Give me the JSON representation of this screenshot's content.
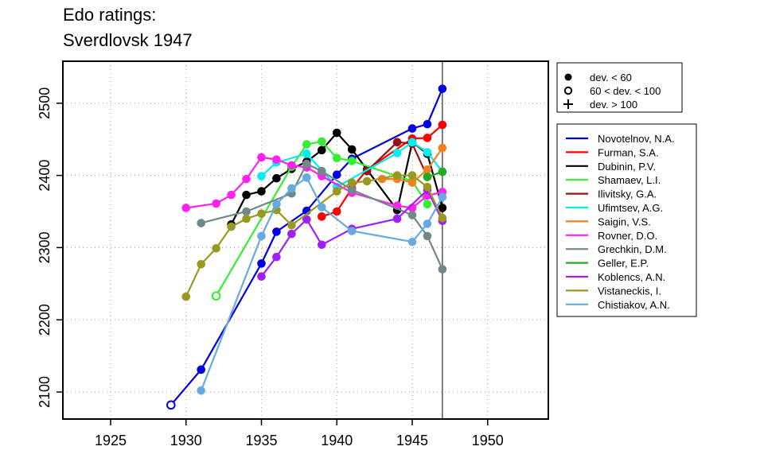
{
  "chart_data": {
    "type": "line",
    "title": "Edo ratings:",
    "subtitle": "Sverdlovsk 1947",
    "xlabel": "",
    "ylabel": "",
    "xlim": [
      1922,
      1955
    ],
    "ylim": [
      2070,
      2555
    ],
    "xticks": [
      "1925",
      "1930",
      "1935",
      "1940",
      "1945",
      "1950"
    ],
    "yticks": [
      "2100",
      "2200",
      "2300",
      "2400",
      "2500"
    ],
    "grid": true,
    "vline": 1947,
    "legend_position": "right",
    "marker_legend": [
      {
        "symbol": "filled-circle",
        "label": "dev. < 60"
      },
      {
        "symbol": "open-circle",
        "label": "60 < dev. < 100"
      },
      {
        "symbol": "plus",
        "label": "dev. > 100"
      }
    ],
    "series": [
      {
        "name": "Novotelnov, N.A.",
        "color": "#0000e0",
        "points": [
          [
            1929,
            2082,
            "o"
          ],
          [
            1931,
            2131,
            "f"
          ],
          [
            1935,
            2278,
            "f"
          ],
          [
            1936,
            2322,
            "f"
          ],
          [
            1938,
            2351,
            "f"
          ],
          [
            1940,
            2401,
            "f"
          ],
          [
            1941,
            2423,
            "f"
          ],
          [
            1945,
            2465,
            "f"
          ],
          [
            1946,
            2471,
            "f"
          ],
          [
            1947,
            2520,
            "f"
          ]
        ]
      },
      {
        "name": "Furman, S.A.",
        "color": "#ff0000",
        "points": [
          [
            1939,
            2343,
            "f"
          ],
          [
            1940,
            2350,
            "f"
          ],
          [
            1941,
            2382,
            "f"
          ],
          [
            1942,
            2408,
            "f"
          ],
          [
            1945,
            2451,
            "f"
          ],
          [
            1946,
            2452,
            "f"
          ],
          [
            1947,
            2470,
            "f"
          ]
        ]
      },
      {
        "name": "Dubinin, P.V.",
        "color": "#000000",
        "points": [
          [
            1933,
            2332,
            "f"
          ],
          [
            1934,
            2373,
            "f"
          ],
          [
            1935,
            2378,
            "f"
          ],
          [
            1936,
            2396,
            "f"
          ],
          [
            1937,
            2409,
            "f"
          ],
          [
            1938,
            2419,
            "f"
          ],
          [
            1939,
            2435,
            "f"
          ],
          [
            1940,
            2459,
            "f"
          ],
          [
            1941,
            2436,
            "f"
          ],
          [
            1942,
            2408,
            "f"
          ],
          [
            1944,
            2352,
            "f"
          ],
          [
            1945,
            2446,
            "f"
          ],
          [
            1946,
            2430,
            "f"
          ],
          [
            1947,
            2355,
            "f"
          ]
        ]
      },
      {
        "name": "Shamaev, L.I.",
        "color": "#33ee33",
        "points": [
          [
            1932,
            2233,
            "o"
          ],
          [
            1937,
            2412,
            "f"
          ],
          [
            1938,
            2443,
            "f"
          ],
          [
            1939,
            2447,
            "f"
          ],
          [
            1940,
            2424,
            "f"
          ],
          [
            1941,
            2420,
            "f"
          ],
          [
            1945,
            2392,
            "f"
          ],
          [
            1946,
            2360,
            "f"
          ]
        ]
      },
      {
        "name": "Ilivitsky, G.A.",
        "color": "#991111",
        "points": [
          [
            1942,
            2406,
            "f"
          ],
          [
            1944,
            2446,
            "f"
          ],
          [
            1945,
            2444,
            "f"
          ],
          [
            1946,
            2398,
            "f"
          ]
        ]
      },
      {
        "name": "Ufimtsev, A.G.",
        "color": "#00eeee",
        "points": [
          [
            1935,
            2399,
            "f"
          ],
          [
            1936,
            2418,
            "f"
          ],
          [
            1938,
            2430,
            "f"
          ],
          [
            1940,
            2384,
            "f"
          ],
          [
            1944,
            2431,
            "f"
          ],
          [
            1945,
            2446,
            "f"
          ],
          [
            1946,
            2432,
            "f"
          ],
          [
            1947,
            2405,
            "f"
          ]
        ]
      },
      {
        "name": "Saigin, V.S.",
        "color": "#f28020",
        "points": [
          [
            1943,
            2395,
            "f"
          ],
          [
            1944,
            2395,
            "f"
          ],
          [
            1945,
            2390,
            "f"
          ],
          [
            1946,
            2408,
            "f"
          ],
          [
            1947,
            2438,
            "f"
          ]
        ]
      },
      {
        "name": "Rovner, D.O.",
        "color": "#ff22ee",
        "points": [
          [
            1930,
            2355,
            "f"
          ],
          [
            1932,
            2361,
            "f"
          ],
          [
            1933,
            2373,
            "f"
          ],
          [
            1934,
            2395,
            "f"
          ],
          [
            1935,
            2425,
            "f"
          ],
          [
            1936,
            2422,
            "f"
          ],
          [
            1937,
            2414,
            "f"
          ],
          [
            1938,
            2411,
            "f"
          ],
          [
            1939,
            2399,
            "f"
          ],
          [
            1941,
            2376,
            "f"
          ],
          [
            1944,
            2358,
            "f"
          ],
          [
            1945,
            2355,
            "f"
          ],
          [
            1946,
            2372,
            "f"
          ],
          [
            1947,
            2377,
            "f"
          ]
        ]
      },
      {
        "name": "Grechkin, D.M.",
        "color": "#6f8888",
        "points": [
          [
            1931,
            2334,
            "f"
          ],
          [
            1934,
            2350,
            "f"
          ],
          [
            1937,
            2375,
            "f"
          ],
          [
            1938,
            2416,
            "f"
          ],
          [
            1939,
            2406,
            "f"
          ],
          [
            1941,
            2380,
            "f"
          ],
          [
            1945,
            2345,
            "f"
          ],
          [
            1946,
            2316,
            "f"
          ],
          [
            1947,
            2270,
            "f"
          ]
        ]
      },
      {
        "name": "Geller, E.P.",
        "color": "#22aa22",
        "points": [
          [
            1946,
            2398,
            "f"
          ],
          [
            1947,
            2405,
            "f"
          ]
        ]
      },
      {
        "name": "Koblencs, A.N.",
        "color": "#a020f0",
        "points": [
          [
            1935,
            2260,
            "f"
          ],
          [
            1936,
            2287,
            "f"
          ],
          [
            1937,
            2319,
            "f"
          ],
          [
            1938,
            2339,
            "f"
          ],
          [
            1939,
            2304,
            "f"
          ],
          [
            1941,
            2326,
            "f"
          ],
          [
            1944,
            2340,
            "f"
          ],
          [
            1946,
            2380,
            "f"
          ],
          [
            1947,
            2337,
            "f"
          ]
        ]
      },
      {
        "name": "Vistaneckis, I.",
        "color": "#999922",
        "points": [
          [
            1930,
            2232,
            "f"
          ],
          [
            1931,
            2277,
            "f"
          ],
          [
            1932,
            2299,
            "f"
          ],
          [
            1933,
            2329,
            "f"
          ],
          [
            1934,
            2340,
            "f"
          ],
          [
            1935,
            2347,
            "f"
          ],
          [
            1936,
            2352,
            "f"
          ],
          [
            1937,
            2331,
            "f"
          ],
          [
            1940,
            2378,
            "f"
          ],
          [
            1941,
            2390,
            "f"
          ],
          [
            1942,
            2392,
            "f"
          ],
          [
            1944,
            2400,
            "f"
          ],
          [
            1945,
            2400,
            "f"
          ],
          [
            1946,
            2384,
            "f"
          ],
          [
            1947,
            2341,
            "f"
          ]
        ]
      },
      {
        "name": "Chistiakov, A.N.",
        "color": "#66aae0",
        "points": [
          [
            1931,
            2102,
            "f"
          ],
          [
            1935,
            2316,
            "f"
          ],
          [
            1936,
            2360,
            "f"
          ],
          [
            1937,
            2382,
            "f"
          ],
          [
            1938,
            2397,
            "f"
          ],
          [
            1939,
            2356,
            "f"
          ],
          [
            1941,
            2323,
            "f"
          ],
          [
            1945,
            2308,
            "f"
          ],
          [
            1946,
            2333,
            "f"
          ],
          [
            1947,
            2370,
            "f"
          ]
        ]
      }
    ]
  }
}
